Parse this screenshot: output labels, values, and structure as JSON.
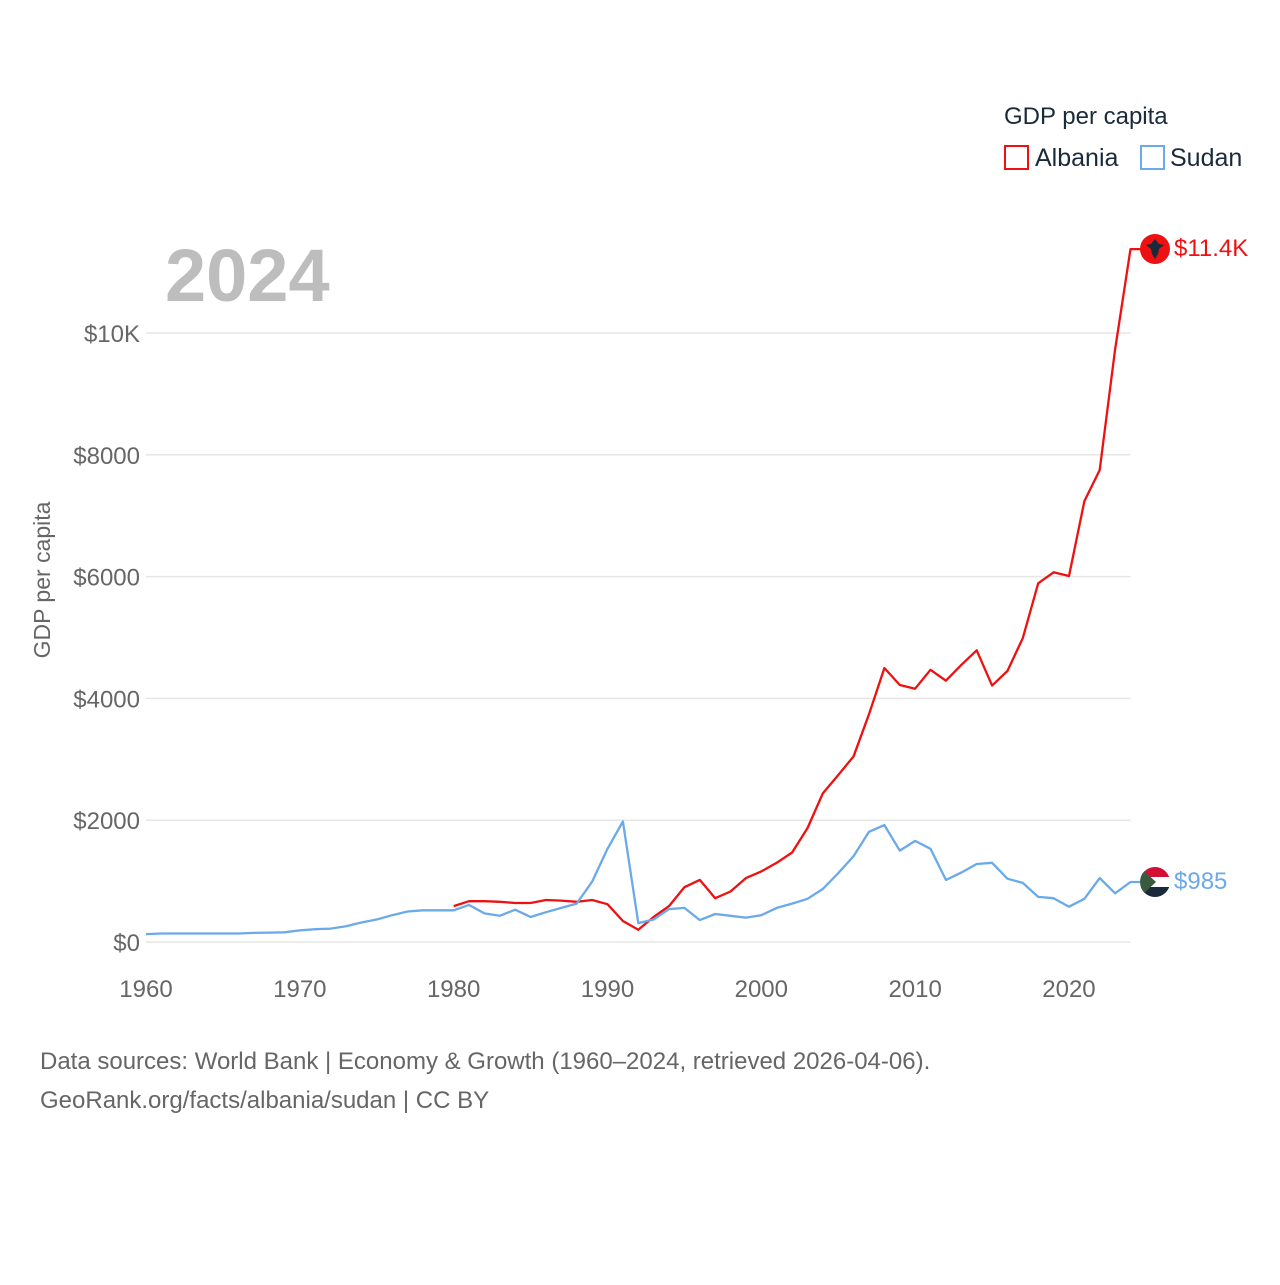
{
  "chart_data": {
    "type": "line",
    "title": "",
    "year_label": "2024",
    "xlabel": "",
    "ylabel": "GDP per capita",
    "xlim": [
      1960,
      2024
    ],
    "ylim": [
      0,
      10000
    ],
    "x_ticks": [
      1960,
      1970,
      1980,
      1990,
      2000,
      2010,
      2020
    ],
    "x_tick_labels": [
      "1960",
      "1970",
      "1980",
      "1990",
      "2000",
      "2010",
      "2020"
    ],
    "y_ticks": [
      0,
      2000,
      4000,
      6000,
      8000,
      10000
    ],
    "y_tick_labels": [
      "$0",
      "$2000",
      "$4000",
      "$6000",
      "$8000",
      "$10K"
    ],
    "grid": true,
    "legend": {
      "title": "GDP per capita",
      "placement": "top-right"
    },
    "series": [
      {
        "name": "Albania",
        "color": "#ee1111",
        "end_label": "$11.4K",
        "start_year": 1980,
        "values": [
          590,
          670,
          670,
          660,
          640,
          640,
          690,
          680,
          660,
          690,
          620,
          345,
          200,
          410,
          590,
          900,
          1020,
          720,
          830,
          1050,
          1160,
          1300,
          1470,
          1870,
          2440,
          2740,
          3050,
          3740,
          4500,
          4220,
          4160,
          4470,
          4290,
          4550,
          4790,
          4210,
          4450,
          4990,
          5890,
          6070,
          6010,
          7240,
          7750,
          9730,
          11377
        ]
      },
      {
        "name": "Sudan",
        "color": "#6aaaea",
        "end_label": "$985",
        "start_year": 1960,
        "values": [
          130,
          140,
          140,
          140,
          140,
          140,
          140,
          150,
          155,
          160,
          190,
          210,
          220,
          260,
          320,
          370,
          440,
          500,
          520,
          520,
          520,
          610,
          470,
          430,
          530,
          410,
          490,
          560,
          630,
          990,
          1530,
          1980,
          310,
          370,
          540,
          560,
          360,
          460,
          430,
          400,
          440,
          560,
          630,
          710,
          870,
          1130,
          1410,
          1810,
          1920,
          1500,
          1660,
          1530,
          1020,
          1140,
          1280,
          1300,
          1040,
          970,
          740,
          720,
          580,
          710,
          1050,
          800,
          985
        ]
      }
    ]
  },
  "footer": {
    "line1": "Data sources: World Bank | Economy & Growth (1960–2024, retrieved 2026-04-06).",
    "line2": "GeoRank.org/facts/albania/sudan | CC BY"
  }
}
